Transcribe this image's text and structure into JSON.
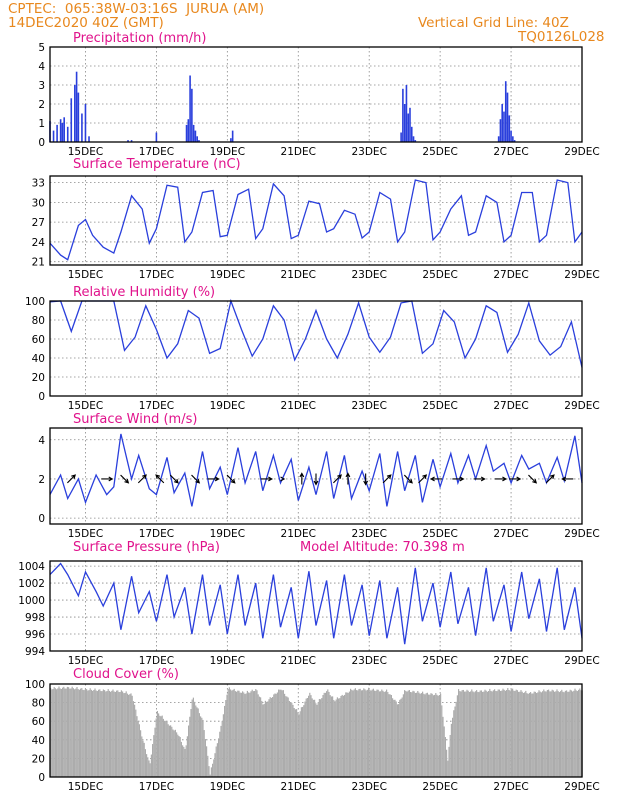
{
  "header": {
    "line1": "CPTEC:  065:38W-03:16S  JURUA (AM)",
    "line2": "14DEC2020 40Z (GMT)",
    "grid_note": "Vertical Grid Line: 40Z",
    "run_id": "TQ0126L028"
  },
  "model_altitude": "Model Altitude: 70.398 m",
  "x_tick_labels": [
    "15DEC",
    "17DEC",
    "19DEC",
    "21DEC",
    "23DEC",
    "25DEC",
    "27DEC",
    "29DEC"
  ],
  "colors": {
    "series": "#2a3fdc",
    "cloud": "#acacac",
    "title": "#e0138c",
    "header": "#e8881e"
  },
  "chart_data": [
    {
      "type": "bar",
      "title": "Precipitation (mm/h)",
      "ylim": [
        0,
        5
      ],
      "yticks": [
        0,
        1,
        2,
        3,
        4,
        5
      ],
      "x_unit": "days since 14DEC 00Z",
      "x": [
        0.0,
        0.1,
        0.2,
        0.3,
        0.35,
        0.4,
        0.5,
        0.6,
        0.7,
        0.75,
        0.8,
        0.9,
        1.0,
        1.1,
        2.2,
        2.3,
        3.0,
        3.85,
        3.9,
        3.95,
        4.0,
        4.05,
        4.1,
        4.15,
        4.2,
        5.1,
        5.15,
        9.9,
        9.95,
        10.0,
        10.05,
        10.1,
        10.15,
        10.2,
        10.25,
        10.3,
        12.65,
        12.7,
        12.75,
        12.8,
        12.85,
        12.9,
        12.95,
        13.0,
        13.05,
        13.1
      ],
      "values": [
        1.1,
        0.6,
        0.9,
        1.2,
        1.0,
        1.3,
        0.8,
        2.3,
        3.0,
        3.7,
        2.6,
        1.5,
        2.0,
        0.3,
        0.1,
        0.1,
        0.5,
        0.9,
        1.2,
        3.5,
        2.8,
        0.9,
        0.6,
        0.3,
        0.1,
        0.2,
        0.6,
        0.5,
        2.8,
        2.0,
        3.0,
        1.5,
        1.8,
        0.8,
        0.3,
        0.1,
        0.3,
        1.2,
        2.0,
        1.6,
        3.2,
        2.6,
        1.4,
        0.6,
        0.3,
        0.1
      ]
    },
    {
      "type": "line",
      "title": "Surface Temperature (nC)",
      "ylim": [
        20.5,
        34
      ],
      "yticks": [
        21,
        24,
        27,
        30,
        33
      ],
      "x_unit": "days since 14DEC 00Z",
      "x": [
        0.0,
        0.3,
        0.5,
        0.8,
        1.0,
        1.2,
        1.5,
        1.8,
        2.0,
        2.3,
        2.6,
        2.8,
        3.0,
        3.3,
        3.6,
        3.8,
        4.0,
        4.3,
        4.6,
        4.8,
        5.0,
        5.3,
        5.6,
        5.8,
        6.0,
        6.3,
        6.6,
        6.8,
        7.0,
        7.3,
        7.6,
        7.8,
        8.0,
        8.3,
        8.6,
        8.8,
        9.0,
        9.3,
        9.6,
        9.8,
        10.0,
        10.3,
        10.6,
        10.8,
        11.0,
        11.3,
        11.6,
        11.8,
        12.0,
        12.3,
        12.6,
        12.8,
        13.0,
        13.3,
        13.6,
        13.8,
        14.0,
        14.3,
        14.6,
        14.8,
        15.0
      ],
      "values": [
        23.8,
        22.0,
        21.3,
        26.5,
        27.4,
        25.0,
        23.2,
        22.3,
        25.5,
        31.0,
        29.0,
        23.8,
        26.0,
        32.6,
        32.3,
        24.0,
        25.5,
        31.5,
        31.8,
        24.8,
        25.0,
        31.2,
        32.0,
        24.5,
        26.0,
        32.8,
        31.0,
        24.5,
        25.0,
        30.2,
        29.8,
        25.5,
        26.0,
        28.8,
        28.2,
        24.6,
        25.5,
        31.5,
        30.5,
        24.0,
        25.5,
        33.4,
        33.0,
        24.3,
        25.5,
        29.0,
        31.0,
        25.0,
        25.5,
        31.0,
        30.0,
        24.0,
        25.0,
        31.5,
        31.5,
        24.0,
        25.0,
        33.4,
        33.0,
        24.0,
        25.5
      ]
    },
    {
      "type": "line",
      "title": "Relative Humidity (%)",
      "ylim": [
        0,
        100
      ],
      "yticks": [
        0,
        20,
        40,
        60,
        80,
        100
      ],
      "x_unit": "days since 14DEC 00Z",
      "x": [
        0.0,
        0.3,
        0.6,
        0.9,
        1.2,
        1.5,
        1.8,
        2.1,
        2.4,
        2.7,
        3.0,
        3.3,
        3.6,
        3.9,
        4.2,
        4.5,
        4.8,
        5.1,
        5.4,
        5.7,
        6.0,
        6.3,
        6.6,
        6.9,
        7.2,
        7.5,
        7.8,
        8.1,
        8.4,
        8.7,
        9.0,
        9.3,
        9.6,
        9.9,
        10.2,
        10.5,
        10.8,
        11.1,
        11.4,
        11.7,
        12.0,
        12.3,
        12.6,
        12.9,
        13.2,
        13.5,
        13.8,
        14.1,
        14.4,
        14.7,
        15.0
      ],
      "values": [
        99,
        100,
        68,
        100,
        100,
        100,
        100,
        48,
        62,
        95,
        70,
        40,
        55,
        90,
        82,
        45,
        50,
        100,
        70,
        42,
        60,
        95,
        80,
        38,
        60,
        90,
        60,
        40,
        65,
        98,
        62,
        46,
        62,
        98,
        100,
        45,
        55,
        90,
        78,
        40,
        60,
        95,
        88,
        46,
        65,
        98,
        58,
        43,
        52,
        78,
        30
      ]
    },
    {
      "type": "line",
      "title": "Surface Wind (m/s)",
      "ylim": [
        -0.3,
        4.6
      ],
      "yticks": [
        0,
        2,
        4
      ],
      "x_unit": "days since 14DEC 00Z",
      "x": [
        0.0,
        0.3,
        0.5,
        0.8,
        1.0,
        1.3,
        1.6,
        1.8,
        2.0,
        2.3,
        2.5,
        2.8,
        3.0,
        3.3,
        3.5,
        3.8,
        4.0,
        4.3,
        4.5,
        4.8,
        5.0,
        5.3,
        5.5,
        5.8,
        6.0,
        6.3,
        6.5,
        6.8,
        7.0,
        7.3,
        7.5,
        7.8,
        8.0,
        8.3,
        8.5,
        8.8,
        9.0,
        9.3,
        9.5,
        9.8,
        10.0,
        10.3,
        10.5,
        10.8,
        11.0,
        11.3,
        11.5,
        11.8,
        12.0,
        12.3,
        12.5,
        12.8,
        13.0,
        13.3,
        13.5,
        13.8,
        14.0,
        14.3,
        14.5,
        14.8,
        15.0
      ],
      "values": [
        1.2,
        2.2,
        1.0,
        2.0,
        0.8,
        2.2,
        1.2,
        1.6,
        4.3,
        2.0,
        3.2,
        1.5,
        1.2,
        3.1,
        1.3,
        2.3,
        0.6,
        3.4,
        1.5,
        2.6,
        1.2,
        3.6,
        1.8,
        3.4,
        1.4,
        3.2,
        1.8,
        3.0,
        0.9,
        2.6,
        1.2,
        3.4,
        1.0,
        3.2,
        1.0,
        2.4,
        1.4,
        3.3,
        0.6,
        3.4,
        1.4,
        3.2,
        0.8,
        3.0,
        1.6,
        3.3,
        1.8,
        3.2,
        2.0,
        3.7,
        2.4,
        2.8,
        1.8,
        3.2,
        2.5,
        2.8,
        1.8,
        3.1,
        1.9,
        4.2,
        1.8
      ],
      "vectors": {
        "x": [
          0.6,
          1.6,
          2.1,
          2.6,
          3.1,
          3.5,
          4.1,
          4.6,
          5.1,
          6.1,
          6.6,
          7.1,
          7.5,
          8.1,
          8.4,
          8.9,
          9.5,
          10.1,
          10.5,
          10.9,
          11.5,
          12.1,
          12.7,
          13.1,
          13.6,
          14.1,
          14.6
        ],
        "u": [
          1,
          1,
          1,
          1,
          -1,
          1,
          1,
          1,
          1,
          1,
          0,
          0,
          0,
          1,
          0,
          0,
          1,
          1,
          1,
          -1,
          1,
          1,
          1,
          1,
          1,
          1,
          -1
        ],
        "v": [
          1,
          0,
          -1,
          1,
          1,
          -1,
          -1,
          0,
          -1,
          0,
          0,
          1,
          -1,
          1,
          1,
          -1,
          1,
          -1,
          1,
          0,
          0,
          0,
          0,
          0,
          -1,
          1,
          0
        ]
      }
    },
    {
      "type": "line",
      "title": "Surface Pressure (hPa)",
      "ylim": [
        994,
        1004.6
      ],
      "yticks": [
        994,
        996,
        998,
        1000,
        1002,
        1004
      ],
      "x_unit": "days since 14DEC 00Z",
      "x": [
        0.0,
        0.3,
        0.5,
        0.8,
        1.0,
        1.3,
        1.5,
        1.8,
        2.0,
        2.3,
        2.5,
        2.8,
        3.0,
        3.3,
        3.5,
        3.8,
        4.0,
        4.3,
        4.5,
        4.8,
        5.0,
        5.3,
        5.5,
        5.8,
        6.0,
        6.3,
        6.5,
        6.8,
        7.0,
        7.3,
        7.5,
        7.8,
        8.0,
        8.3,
        8.5,
        8.8,
        9.0,
        9.3,
        9.5,
        9.8,
        10.0,
        10.3,
        10.5,
        10.8,
        11.0,
        11.3,
        11.5,
        11.8,
        12.0,
        12.3,
        12.5,
        12.8,
        13.0,
        13.3,
        13.5,
        13.8,
        14.0,
        14.3,
        14.5,
        14.8,
        15.0
      ],
      "values": [
        1003.0,
        1004.3,
        1003.0,
        1000.5,
        1003.3,
        1001.0,
        999.3,
        1002.0,
        996.5,
        1002.8,
        998.5,
        1001.0,
        997.5,
        1003.0,
        998.0,
        1001.5,
        996.0,
        1003.0,
        997.0,
        1001.8,
        996.0,
        1003.0,
        997.0,
        1002.0,
        995.5,
        1003.0,
        996.8,
        1001.5,
        995.5,
        1003.4,
        997.0,
        1002.3,
        995.5,
        1003.0,
        997.0,
        1001.8,
        995.8,
        1002.3,
        995.5,
        1001.5,
        994.8,
        1003.8,
        997.5,
        1002.0,
        996.8,
        1003.3,
        997.2,
        1001.5,
        995.8,
        1003.8,
        997.5,
        1001.8,
        996.3,
        1003.3,
        997.8,
        1002.5,
        996.3,
        1003.8,
        996.5,
        1001.5,
        995.5
      ]
    },
    {
      "type": "bar",
      "title": "Cloud Cover (%)",
      "ylim": [
        0,
        100
      ],
      "yticks": [
        0,
        20,
        40,
        60,
        80,
        100
      ],
      "x_unit": "days since 14DEC 00Z",
      "x": [
        0.0,
        0.5,
        1.0,
        1.5,
        2.0,
        2.3,
        2.6,
        2.8,
        3.0,
        3.3,
        3.6,
        3.8,
        4.0,
        4.3,
        4.5,
        4.8,
        5.0,
        5.5,
        5.8,
        6.0,
        6.5,
        7.0,
        7.3,
        7.5,
        7.8,
        8.0,
        8.5,
        9.0,
        9.5,
        9.8,
        10.0,
        10.5,
        11.0,
        11.2,
        11.3,
        11.5,
        12.0,
        12.5,
        13.0,
        13.5,
        14.0,
        14.5,
        15.0
      ],
      "values": [
        97,
        98,
        96,
        95,
        94,
        90,
        42,
        15,
        72,
        60,
        48,
        30,
        88,
        62,
        5,
        55,
        97,
        92,
        96,
        80,
        97,
        70,
        92,
        80,
        96,
        84,
        96,
        96,
        94,
        80,
        95,
        92,
        90,
        20,
        60,
        95,
        94,
        95,
        96,
        92,
        95,
        94,
        96
      ]
    }
  ]
}
